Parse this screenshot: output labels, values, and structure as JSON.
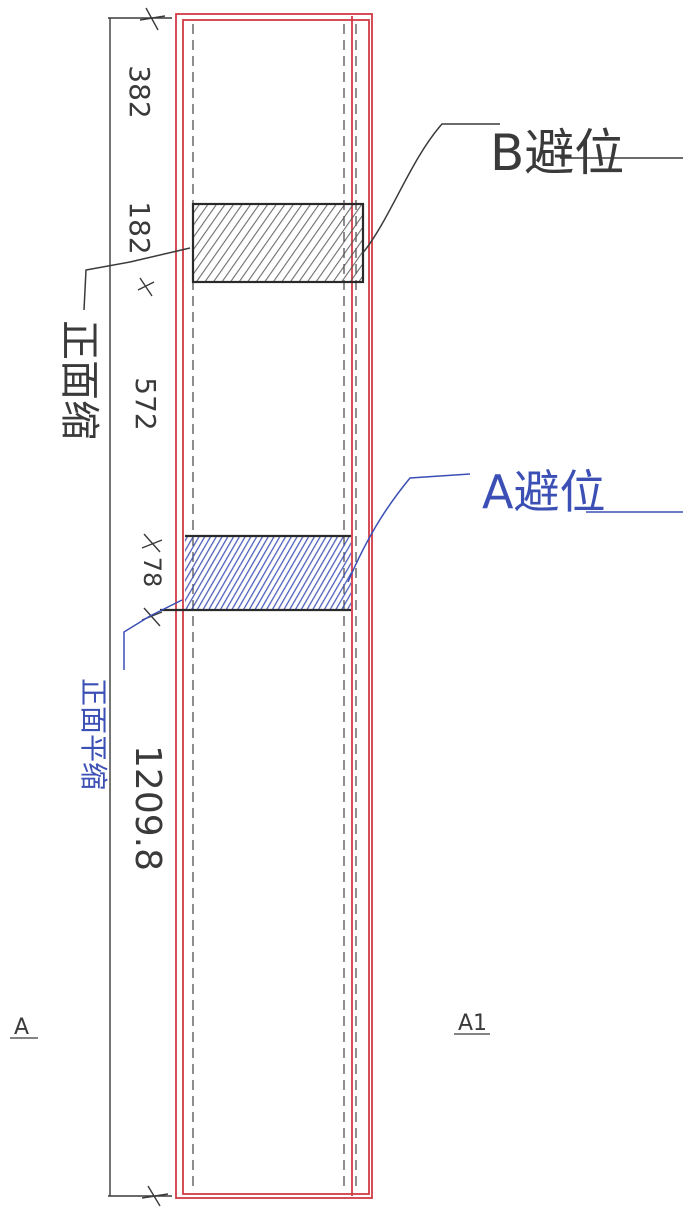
{
  "dimensions": {
    "d1": "382",
    "d2": "182",
    "d3": "572",
    "d4": "78",
    "d5": "1209.8"
  },
  "labels": {
    "b_avoid": "B避位",
    "a_avoid": "A避位",
    "side_left_black": "正面缩",
    "side_left_blue": "正面平缩",
    "end_left": "A",
    "end_right": "A1"
  },
  "colors": {
    "pencil": "#3a3a3a",
    "red_outline": "#d23a45",
    "blue_ink": "#3b4fb5",
    "hatch_dark": "#555555"
  }
}
